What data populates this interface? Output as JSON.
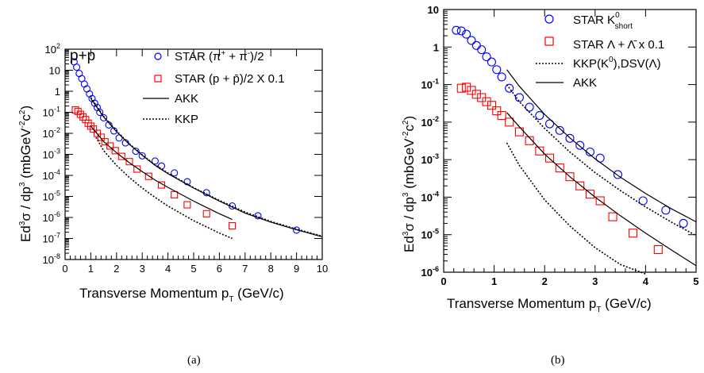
{
  "chart_data": [
    {
      "panel": "a",
      "type": "scatter",
      "title": "p+p",
      "caption": "(a)",
      "xlabel": "Transverse Momentum p_T (GeV/c)",
      "ylabel": "Ed³σ / dp³ (mbGeV⁻²c²)",
      "xlim": [
        0,
        10
      ],
      "ylim": [
        1e-08,
        100
      ],
      "yscale": "log",
      "x_ticks": [
        "0",
        "1",
        "2",
        "3",
        "4",
        "5",
        "6",
        "7",
        "8",
        "9",
        "10"
      ],
      "y_tick_exponents": [
        -8,
        -7,
        -6,
        -5,
        -4,
        -3,
        -2,
        -1,
        0,
        1,
        2
      ],
      "grid": false,
      "legend_position": "top-right",
      "legend": [
        {
          "label": "STAR (π⁺ + π⁻)/2",
          "marker": "circle",
          "color": "#0000ff"
        },
        {
          "label": "STAR (p + p̄)/2 X 0.1",
          "marker": "square",
          "color": "#ff0000"
        },
        {
          "label": "AKK",
          "line": "solid",
          "color": "#000000"
        },
        {
          "label": "KKP",
          "line": "dotted",
          "color": "#000000"
        }
      ],
      "series": [
        {
          "name": "STAR (π⁺ + π⁻)/2",
          "marker": "circle",
          "color": "#0000ff",
          "x": [
            0.35,
            0.45,
            0.55,
            0.65,
            0.75,
            0.85,
            0.95,
            1.05,
            1.15,
            1.25,
            1.35,
            1.5,
            1.7,
            1.9,
            2.1,
            2.35,
            2.75,
            3.0,
            3.5,
            3.75,
            4.25,
            4.75,
            5.5,
            6.5,
            7.5,
            9.0
          ],
          "y": [
            25,
            14,
            7,
            4,
            2.2,
            1.3,
            0.75,
            0.45,
            0.27,
            0.17,
            0.1,
            0.055,
            0.025,
            0.013,
            0.006,
            0.0035,
            0.0014,
            0.00085,
            0.00048,
            0.00028,
            0.00013,
            5e-05,
            1.5e-05,
            3.5e-06,
            1.2e-06,
            2.5e-07
          ]
        },
        {
          "name": "STAR (p + p̄)/2 X 0.1",
          "marker": "square",
          "color": "#ff0000",
          "x": [
            0.4,
            0.5,
            0.6,
            0.7,
            0.8,
            0.9,
            1.0,
            1.1,
            1.25,
            1.4,
            1.55,
            1.75,
            1.95,
            2.2,
            2.5,
            2.8,
            3.25,
            3.75,
            4.25,
            4.75,
            5.5,
            6.5
          ],
          "y": [
            0.13,
            0.11,
            0.08,
            0.06,
            0.045,
            0.03,
            0.022,
            0.016,
            0.01,
            0.0065,
            0.004,
            0.0025,
            0.0015,
            0.0008,
            0.00045,
            0.0002,
            9e-05,
            3.5e-05,
            1.2e-05,
            4e-06,
            1.5e-06,
            4e-07
          ]
        },
        {
          "name": "AKK",
          "line": "solid",
          "color": "#000000",
          "x": [
            1.0,
            1.5,
            2.0,
            2.5,
            3.0,
            3.5,
            4.0,
            5.0,
            6.0,
            7.0,
            8.0,
            9.0,
            10.0
          ],
          "y": [
            0.45,
            0.06,
            0.012,
            0.003,
            0.0009,
            0.0003,
            0.00012,
            2.5e-05,
            6e-06,
            1.6e-06,
            6e-07,
            2.6e-07,
            1.2e-07
          ]
        },
        {
          "name": "KKP",
          "line": "dotted",
          "color": "#000000",
          "x": [
            1.0,
            1.5,
            2.0,
            2.5,
            3.0,
            3.5,
            4.0,
            5.0,
            6.0,
            7.0,
            8.0,
            9.0,
            10.0
          ],
          "y": [
            0.5,
            0.065,
            0.013,
            0.0032,
            0.00095,
            0.00032,
            0.00013,
            2.6e-05,
            6.5e-06,
            1.8e-06,
            6.5e-07,
            2.8e-07,
            1.3e-07
          ]
        },
        {
          "name": "AKK",
          "line": "solid",
          "color": "#000000",
          "x": [
            1.0,
            1.5,
            2.0,
            2.5,
            3.0,
            3.5,
            4.0,
            5.0,
            6.0,
            6.5
          ],
          "y": [
            0.022,
            0.004,
            0.0012,
            0.0004,
            0.00015,
            6e-05,
            2.7e-05,
            6e-06,
            1.5e-06,
            8e-07
          ]
        },
        {
          "name": "KKP",
          "line": "dotted",
          "color": "#000000",
          "x": [
            1.2,
            1.5,
            2.0,
            2.5,
            3.0,
            3.5,
            4.0,
            5.0,
            6.0,
            6.5
          ],
          "y": [
            0.0065,
            0.0015,
            0.0003,
            8e-05,
            2.5e-05,
            9e-06,
            3.5e-06,
            7e-07,
            1.8e-07,
            1e-07
          ]
        }
      ]
    },
    {
      "panel": "b",
      "type": "scatter",
      "caption": "(b)",
      "xlabel": "Transverse Momentum p_T (GeV/c)",
      "ylabel": "Ed³σ / dp³ (mbGeV⁻²c²)",
      "xlim": [
        0,
        5
      ],
      "ylim": [
        1e-06,
        10
      ],
      "yscale": "log",
      "x_ticks": [
        "0",
        "1",
        "2",
        "3",
        "4",
        "5"
      ],
      "y_tick_exponents": [
        -6,
        -5,
        -4,
        -3,
        -2,
        -1,
        0,
        1
      ],
      "grid": false,
      "legend_position": "top-right",
      "legend": [
        {
          "label": "STAR K⁰short",
          "marker": "circle",
          "color": "#0000ff"
        },
        {
          "label": "STAR Λ + Λ̄ x 0.1",
          "marker": "square",
          "color": "#ff0000"
        },
        {
          "label": "KKP(K⁰),DSV(Λ)",
          "line": "dotted",
          "color": "#000000"
        },
        {
          "label": "AKK",
          "line": "solid",
          "color": "#000000"
        }
      ],
      "series": [
        {
          "name": "STAR K⁰short",
          "marker": "circle",
          "color": "#0000ff",
          "x": [
            0.25,
            0.35,
            0.45,
            0.55,
            0.65,
            0.75,
            0.85,
            0.95,
            1.05,
            1.15,
            1.3,
            1.5,
            1.7,
            1.9,
            2.1,
            2.3,
            2.5,
            2.7,
            2.9,
            3.1,
            3.45,
            3.95,
            4.4,
            4.75
          ],
          "y": [
            2.8,
            2.7,
            2.2,
            1.5,
            1.1,
            0.85,
            0.55,
            0.4,
            0.25,
            0.16,
            0.08,
            0.045,
            0.025,
            0.015,
            0.009,
            0.006,
            0.0037,
            0.0024,
            0.0016,
            0.0011,
            0.0004,
            8e-05,
            4.5e-05,
            2e-05
          ]
        },
        {
          "name": "STAR Λ + Λ̄ x 0.1",
          "marker": "square",
          "color": "#ff0000",
          "x": [
            0.35,
            0.45,
            0.55,
            0.65,
            0.75,
            0.85,
            0.95,
            1.05,
            1.15,
            1.3,
            1.5,
            1.7,
            1.9,
            2.1,
            2.3,
            2.5,
            2.7,
            2.9,
            3.1,
            3.35,
            3.75,
            4.25
          ],
          "y": [
            0.08,
            0.085,
            0.07,
            0.055,
            0.045,
            0.035,
            0.028,
            0.02,
            0.015,
            0.01,
            0.0055,
            0.0032,
            0.0017,
            0.0011,
            0.0006,
            0.00035,
            0.0002,
            0.00012,
            8e-05,
            3e-05,
            1.1e-05,
            4e-06
          ]
        },
        {
          "name": "AKK",
          "line": "solid",
          "color": "#000000",
          "x": [
            1.25,
            1.5,
            2.0,
            2.5,
            3.0,
            3.5,
            4.0,
            4.5,
            5.0
          ],
          "y": [
            0.25,
            0.09,
            0.016,
            0.0038,
            0.00105,
            0.00034,
            0.000125,
            5e-05,
            2.2e-05
          ]
        },
        {
          "name": "KKP(K⁰),DSV(Λ)",
          "line": "dotted",
          "color": "#000000",
          "x": [
            1.25,
            1.5,
            2.0,
            2.5,
            3.0,
            3.5,
            4.0,
            4.5,
            5.0
          ],
          "y": [
            0.1,
            0.035,
            0.0068,
            0.0016,
            0.00045,
            0.00015,
            5.5e-05,
            2.2e-05,
            9.5e-06
          ]
        },
        {
          "name": "AKK",
          "line": "solid",
          "color": "#000000",
          "x": [
            1.25,
            1.5,
            2.0,
            2.5,
            3.0,
            3.5,
            4.0,
            4.5,
            5.0
          ],
          "y": [
            0.018,
            0.0075,
            0.0014,
            0.00035,
            0.0001,
            3.2e-05,
            1.1e-05,
            4e-06,
            1.5e-06
          ]
        },
        {
          "name": "KKP(K⁰),DSV(Λ)",
          "line": "dotted",
          "color": "#000000",
          "x": [
            1.25,
            1.5,
            2.0,
            2.5,
            3.0,
            3.5,
            4.0
          ],
          "y": [
            0.0028,
            0.0007,
            8.5e-05,
            1.7e-05,
            4.5e-06,
            1.6e-06,
            9e-07
          ]
        }
      ]
    }
  ]
}
